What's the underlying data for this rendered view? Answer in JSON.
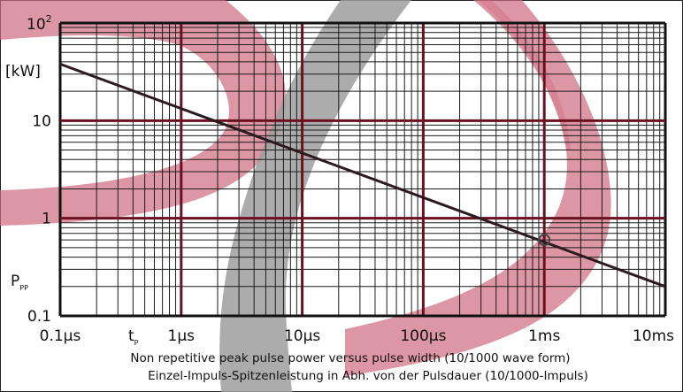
{
  "chart_data": {
    "type": "line",
    "title": "",
    "caption_lines": [
      "Non repetitive peak pulse power  versus pulse width (10/1000 wave form)",
      "Einzel-Impuls-Spitzenleistung in Abh. von der Pulsdauer  (10/1000-Impuls)"
    ],
    "x_scale": "log",
    "y_scale": "log",
    "xlim": [
      1e-07,
      0.01
    ],
    "ylim": [
      0.1,
      100
    ],
    "x_ticks": [
      {
        "value": 1e-07,
        "label": "0.1µs"
      },
      {
        "value": 1e-06,
        "label": "1µs"
      },
      {
        "value": 1e-05,
        "label": "10µs"
      },
      {
        "value": 0.0001,
        "label": "100µs"
      },
      {
        "value": 0.001,
        "label": "1ms"
      },
      {
        "value": 0.01,
        "label": "10ms"
      }
    ],
    "y_ticks": [
      {
        "value": 0.1,
        "label": "0.1"
      },
      {
        "value": 1,
        "label": "1"
      },
      {
        "value": 10,
        "label": "10"
      }
    ],
    "y_top_label": {
      "base": "10",
      "exp": "2"
    },
    "y_unit": "[kW]",
    "y_symbol": {
      "main": "P",
      "sub": "PP"
    },
    "x_symbol": {
      "main": "t",
      "sub": "P"
    },
    "grid": true,
    "series": [
      {
        "x": [
          1e-07,
          0.01
        ],
        "y": [
          38,
          0.2
        ],
        "color": "#2b1a1e"
      }
    ],
    "marker": {
      "x": 0.001,
      "y": 0.6,
      "shape": "open-circle"
    },
    "colors": {
      "grid_major": "#6b1020",
      "grid_minor": "#1a1a1a",
      "line": "#2b1a1e",
      "watermark_red": "#cf6a7d",
      "watermark_gray": "#9e9e9e"
    }
  }
}
